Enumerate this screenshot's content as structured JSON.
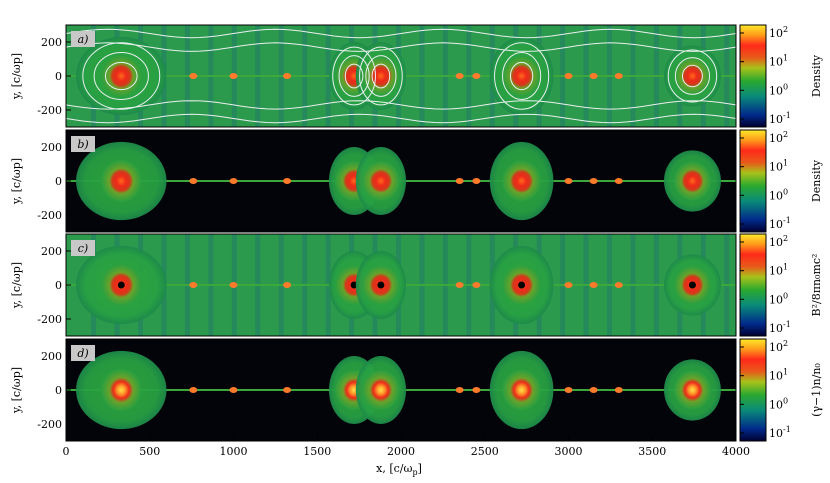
{
  "chart_data": {
    "type": "heatmap",
    "panels": [
      {
        "label": "a)",
        "colorbar_label": "Density",
        "cbar_ticks": [
          "10",
          "10",
          "10",
          "10"
        ],
        "cbar_exps": [
          "2",
          "1",
          "0",
          "-1"
        ],
        "background": "field",
        "streamlines": true
      },
      {
        "label": "b)",
        "colorbar_label": "Density",
        "cbar_ticks": [
          "10",
          "10",
          "10",
          "10"
        ],
        "cbar_exps": [
          "2",
          "1",
          "0",
          "-1"
        ],
        "background": "dark",
        "streamlines": false
      },
      {
        "label": "c)",
        "colorbar_label": "B²/8πn₀mc²",
        "cbar_ticks": [
          "10",
          "10",
          "10",
          "10"
        ],
        "cbar_exps": [
          "2",
          "1",
          "0",
          "-1"
        ],
        "background": "field",
        "streamlines": false
      },
      {
        "label": "d)",
        "colorbar_label": "(γ−1)n/n₀",
        "cbar_ticks": [
          "10",
          "10",
          "10",
          "10"
        ],
        "cbar_exps": [
          "2",
          "1",
          "0",
          "-1"
        ],
        "background": "dark",
        "streamlines": false
      }
    ],
    "plasmoids": [
      {
        "x": 330,
        "intensity": 1.0,
        "halfwidth": 270,
        "height": 230
      },
      {
        "x": 1720,
        "intensity": 0.85,
        "halfwidth": 150,
        "height": 200
      },
      {
        "x": 1880,
        "intensity": 0.85,
        "halfwidth": 150,
        "height": 200
      },
      {
        "x": 2720,
        "intensity": 0.9,
        "halfwidth": 190,
        "height": 230
      },
      {
        "x": 3740,
        "intensity": 0.8,
        "halfwidth": 170,
        "height": 180
      }
    ],
    "small_islands": [
      760,
      1000,
      1320,
      2350,
      2450,
      3000,
      3150,
      3300
    ],
    "ylabel": "y, [c/ω",
    "ylabel_sub": "p",
    "ylabel_close": "]",
    "xlabel": "x, [c/ω",
    "xlabel_sub": "p",
    "xlabel_close": "]",
    "xlim": [
      0,
      4000
    ],
    "ylim": [
      -300,
      300
    ],
    "xticks": [
      0,
      500,
      1000,
      1500,
      2000,
      2500,
      3000,
      3500,
      4000
    ],
    "yticks": [
      200,
      0,
      -200
    ],
    "colormap": [
      "#0a0a3a",
      "#003a8a",
      "#1a8a5a",
      "#3aa832",
      "#c8d21a",
      "#e85a1a",
      "#ff3a2a",
      "#ffd02a",
      "#ffff8a"
    ]
  }
}
